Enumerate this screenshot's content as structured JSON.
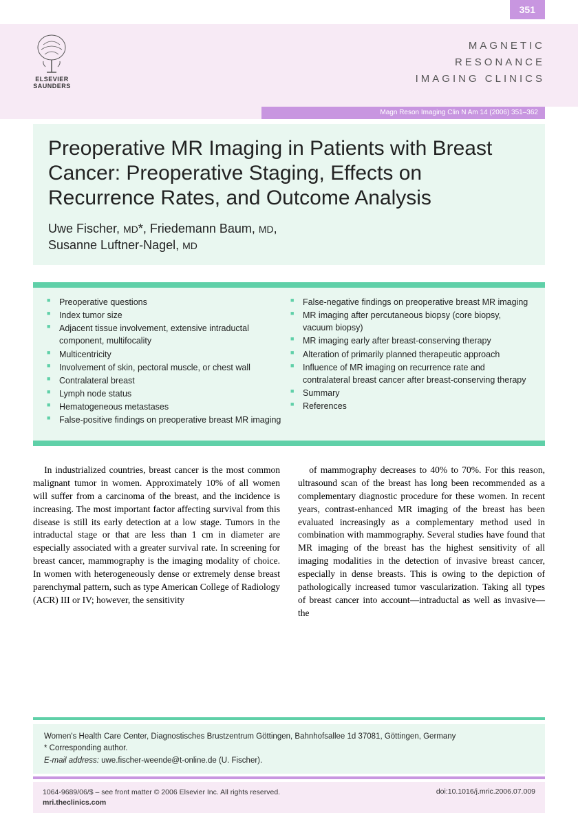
{
  "colors": {
    "purple_light": "#f7eaf5",
    "purple_mid": "#c896e0",
    "green_light": "#e9f7f0",
    "green_mid": "#5fd0a8",
    "text": "#222222"
  },
  "page_number": "351",
  "publisher": {
    "line1": "ELSEVIER",
    "line2": "SAUNDERS"
  },
  "journal_name": {
    "line1": "MAGNETIC",
    "line2": "RESONANCE",
    "line3": "IMAGING CLINICS"
  },
  "citation": "Magn Reson Imaging Clin N Am 14 (2006) 351–362",
  "title": "Preoperative MR Imaging in Patients with Breast Cancer: Preoperative Staging, Effects on Recurrence Rates, and Outcome Analysis",
  "authors_html": "Uwe Fischer, <span class='degree'>MD</span>*, Friedemann Baum, <span class='degree'>MD</span>,<br>Susanne Luftner-Nagel, <span class='degree'>MD</span>",
  "contents_left": [
    "Preoperative questions",
    "Index tumor size",
    "Adjacent tissue involvement, extensive intraductal component, multifocality",
    "Multicentricity",
    "Involvement of skin, pectoral muscle, or chest wall",
    "Contralateral breast",
    "Lymph node status",
    "Hematogeneous metastases",
    "False-positive findings on preoperative breast MR imaging"
  ],
  "contents_right": [
    "False-negative findings on preoperative breast MR imaging",
    "MR imaging after percutaneous biopsy (core biopsy, vacuum biopsy)",
    "MR imaging early after breast-conserving therapy",
    "Alteration of primarily planned therapeutic approach",
    "Influence of MR imaging on recurrence rate and contralateral breast cancer after breast-conserving therapy",
    "Summary",
    "References"
  ],
  "body": {
    "col1": "In industrialized countries, breast cancer is the most common malignant tumor in women. Approximately 10% of all women will suffer from a carcinoma of the breast, and the incidence is increasing. The most important factor affecting survival from this disease is still its early detection at a low stage. Tumors in the intraductal stage or that are less than 1 cm in diameter are especially associated with a greater survival rate. In screening for breast cancer, mammography is the imaging modality of choice. In women with heterogeneously dense or extremely dense breast parenchymal pattern, such as type American College of Radiology (ACR) III or IV; however, the sensitivity",
    "col2": "of mammography decreases to 40% to 70%. For this reason, ultrasound scan of the breast has long been recommended as a complementary diagnostic procedure for these women. In recent years, contrast-enhanced MR imaging of the breast has been evaluated increasingly as a complementary method used in combination with mammography. Several studies have found that MR imaging of the breast has the highest sensitivity of all imaging modalities in the detection of invasive breast cancer, especially in dense breasts. This is owing to the depiction of pathologically increased tumor vascularization. Taking all types of breast cancer into account—intraductal as well as invasive—the"
  },
  "affiliation": {
    "address": "Women's Health Care Center, Diagnostisches Brustzentrum Göttingen, Bahnhofsallee 1d 37081, Göttingen, Germany",
    "corresponding": "* Corresponding author.",
    "email_label": "E-mail address:",
    "email": "uwe.fischer-weende@t-online.de (U. Fischer)."
  },
  "footer": {
    "issn_line": "1064-9689/06/$ – see front matter © 2006 Elsevier Inc. All rights reserved.",
    "url": "mri.theclinics.com",
    "doi": "doi:10.1016/j.mric.2006.07.009"
  }
}
